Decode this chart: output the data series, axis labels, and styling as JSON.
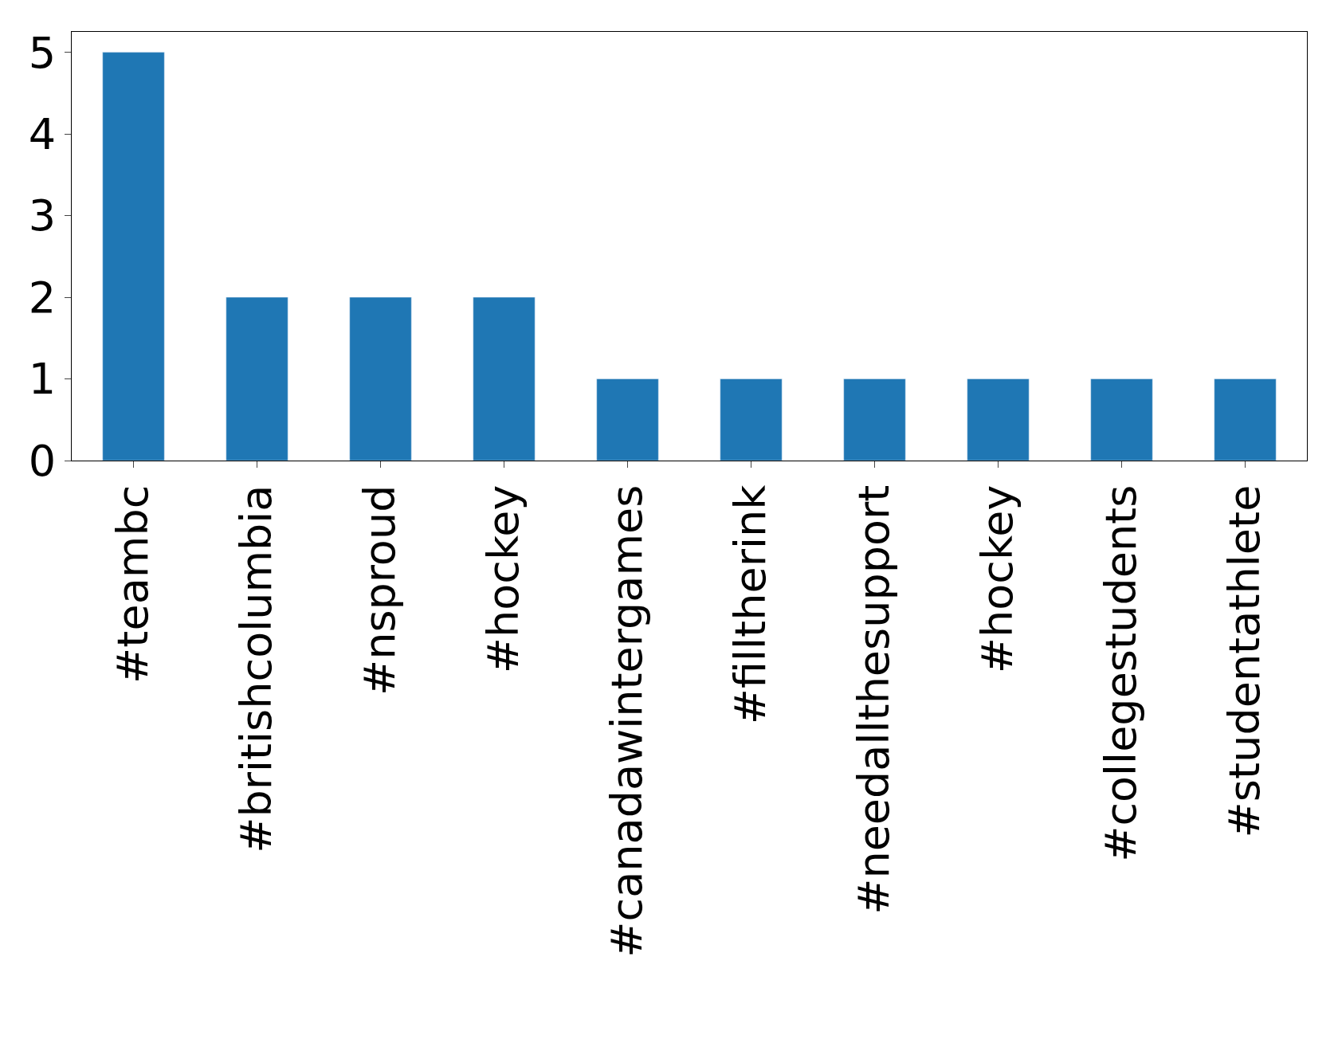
{
  "chart_data": {
    "type": "bar",
    "categories": [
      "#teambc",
      "#britishcolumbia",
      "#nsproud",
      "#hockey",
      "#canadawintergames",
      "#filltherink",
      "#needallthesupport",
      "#hockey",
      "#collegestudents",
      "#studentathlete"
    ],
    "values": [
      5,
      2,
      2,
      2,
      1,
      1,
      1,
      1,
      1,
      1
    ],
    "color": "#1f77b4",
    "ylim": [
      0,
      5.25
    ],
    "yticks": [
      0,
      1,
      2,
      3,
      4,
      5
    ]
  }
}
